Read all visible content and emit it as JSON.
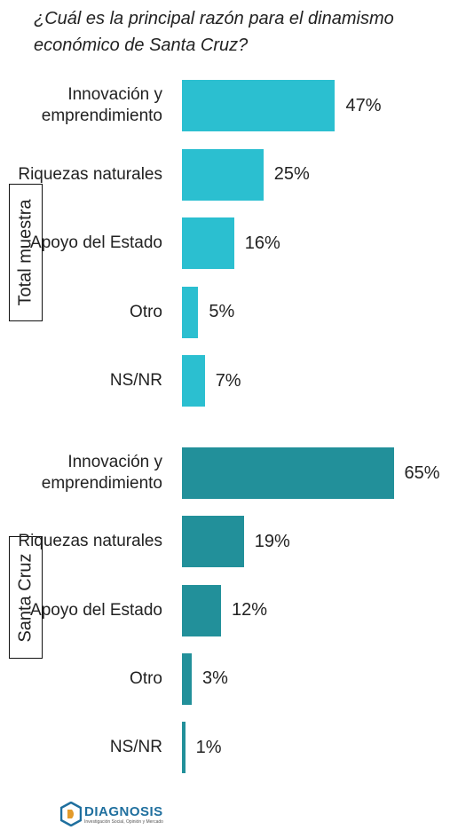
{
  "title": "¿Cuál es la principal razón para el dinamismo económico de Santa Cruz?",
  "chart_data": [
    {
      "type": "bar",
      "orientation": "horizontal",
      "label": "Total muestra",
      "color": "#2bbfd0",
      "categories": [
        "Innovación y emprendimiento",
        "Riquezas naturales",
        "Apoyo del Estado",
        "Otro",
        "NS/NR"
      ],
      "values": [
        47,
        25,
        16,
        5,
        7
      ],
      "value_labels": [
        "47%",
        "25%",
        "16%",
        "5%",
        "7%"
      ]
    },
    {
      "type": "bar",
      "orientation": "horizontal",
      "label": "Santa Cruz",
      "color": "#22909a",
      "categories": [
        "Innovación y emprendimiento",
        "Riquezas naturales",
        "Apoyo del Estado",
        "Otro",
        "NS/NR"
      ],
      "values": [
        65,
        19,
        12,
        3,
        1
      ],
      "value_labels": [
        "65%",
        "19%",
        "12%",
        "3%",
        "1%"
      ]
    }
  ],
  "logo": {
    "name": "DIAGNOSIS",
    "tagline": "Investigación Social, Opinión y Mercado"
  }
}
